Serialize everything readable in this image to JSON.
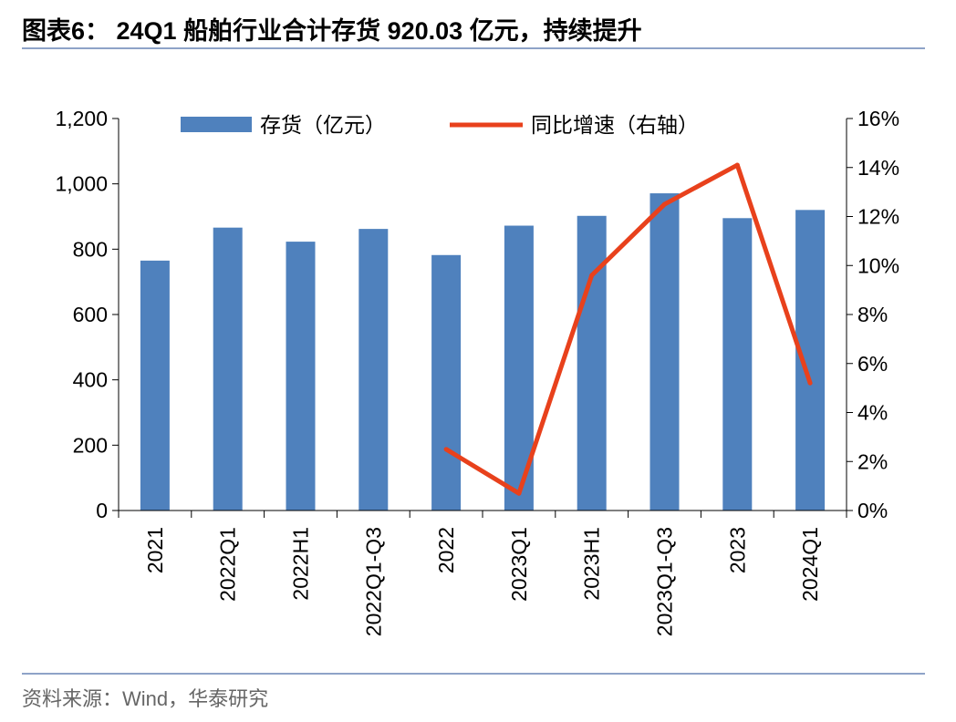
{
  "header": {
    "title": "图表6：  24Q1 船舶行业合计存货 920.03 亿元，持续提升"
  },
  "footer": {
    "source": "资料来源：Wind，华泰研究"
  },
  "colors": {
    "bar": "#4f81bd",
    "line": "#e8411c",
    "rule": "#8ea3c8",
    "axis": "#000000"
  },
  "chart_data": {
    "type": "bar+line",
    "title": "24Q1 船舶行业合计存货 920.03 亿元，持续提升",
    "categories": [
      "2021",
      "2022Q1",
      "2022H1",
      "2022Q1-Q3",
      "2022",
      "2023Q1",
      "2023H1",
      "2023Q1-Q3",
      "2023",
      "2024Q1"
    ],
    "series": [
      {
        "name": "存货（亿元）",
        "type": "bar",
        "axis": "left",
        "values": [
          765,
          866,
          823,
          862,
          782,
          872,
          902,
          971,
          895,
          920.03
        ]
      },
      {
        "name": "同比增速（右轴）",
        "type": "line",
        "axis": "right",
        "unit": "%",
        "values": [
          null,
          null,
          null,
          null,
          2.5,
          0.7,
          9.6,
          12.5,
          14.1,
          5.2
        ]
      }
    ],
    "y_left": {
      "min": 0,
      "max": 1200,
      "step": 200,
      "tick_labels": [
        "0",
        "200",
        "400",
        "600",
        "800",
        "1,000",
        "1,200"
      ]
    },
    "y_right": {
      "min": 0,
      "max": 16,
      "step": 2,
      "tick_labels": [
        "0%",
        "2%",
        "4%",
        "6%",
        "8%",
        "10%",
        "12%",
        "14%",
        "16%"
      ]
    },
    "legend": {
      "position": "top-center",
      "entries": [
        "存货（亿元）",
        "同比增速（右轴）"
      ]
    },
    "grid": false,
    "xlabel": "",
    "ylabel": ""
  }
}
